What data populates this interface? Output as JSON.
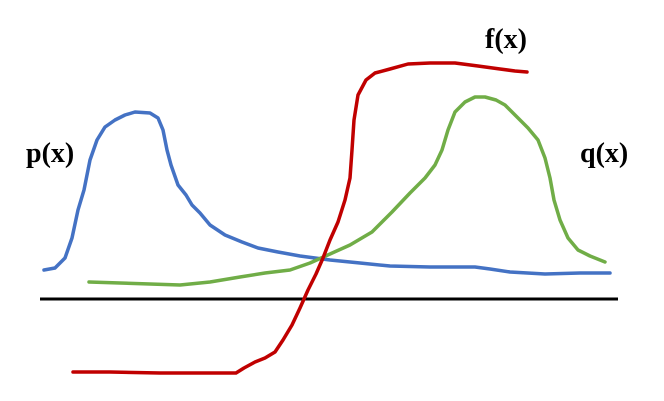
{
  "labels": {
    "p": "p(x)",
    "q": "q(x)",
    "f": "f(x)"
  },
  "colors": {
    "p_curve": "#4472C4",
    "q_curve": "#70AD47",
    "f_curve": "#C00000",
    "baseline": "#000000",
    "label_text": "#000000"
  }
}
